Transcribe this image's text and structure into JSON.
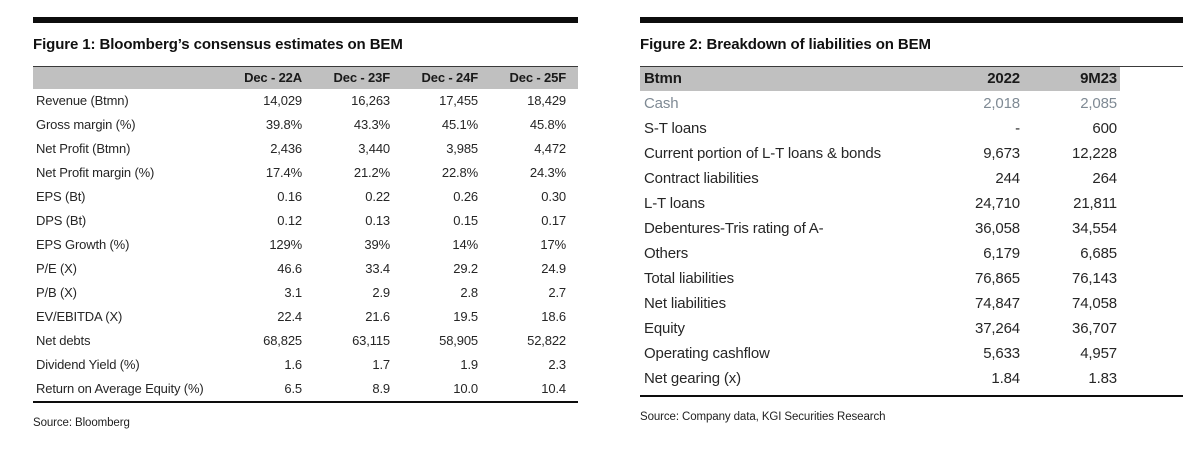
{
  "colors": {
    "header_bg": "#c0c0c0",
    "bar_color": "#0d0d0d",
    "muted_text": "#7f8a94"
  },
  "figure1": {
    "title": "Figure 1: Bloomberg’s consensus estimates on BEM",
    "source": "Source: Bloomberg",
    "columns": [
      "",
      "Dec - 22A",
      "Dec - 23F",
      "Dec - 24F",
      "Dec - 25F"
    ],
    "rows": [
      {
        "label": "Revenue (Btmn)",
        "values": [
          "14,029",
          "16,263",
          "17,455",
          "18,429"
        ]
      },
      {
        "label": "Gross margin (%)",
        "values": [
          "39.8%",
          "43.3%",
          "45.1%",
          "45.8%"
        ]
      },
      {
        "label": "Net Profit (Btmn)",
        "values": [
          "2,436",
          "3,440",
          "3,985",
          "4,472"
        ]
      },
      {
        "label": "Net Profit margin (%)",
        "values": [
          "17.4%",
          "21.2%",
          "22.8%",
          "24.3%"
        ]
      },
      {
        "label": "EPS (Bt)",
        "values": [
          "0.16",
          "0.22",
          "0.26",
          "0.30"
        ]
      },
      {
        "label": "DPS (Bt)",
        "values": [
          "0.12",
          "0.13",
          "0.15",
          "0.17"
        ]
      },
      {
        "label": "EPS Growth (%)",
        "values": [
          "129%",
          "39%",
          "14%",
          "17%"
        ]
      },
      {
        "label": "P/E (X)",
        "values": [
          "46.6",
          "33.4",
          "29.2",
          "24.9"
        ]
      },
      {
        "label": "P/B (X)",
        "values": [
          "3.1",
          "2.9",
          "2.8",
          "2.7"
        ]
      },
      {
        "label": "EV/EBITDA (X)",
        "values": [
          "22.4",
          "21.6",
          "19.5",
          "18.6"
        ]
      },
      {
        "label": "Net debts",
        "values": [
          "68,825",
          "63,115",
          "58,905",
          "52,822"
        ]
      },
      {
        "label": "Dividend Yield (%)",
        "values": [
          "1.6",
          "1.7",
          "1.9",
          "2.3"
        ]
      },
      {
        "label": "Return on Average Equity (%)",
        "values": [
          "6.5",
          "8.9",
          "10.0",
          "10.4"
        ]
      }
    ]
  },
  "figure2": {
    "title": "Figure 2: Breakdown of liabilities on BEM",
    "source": "Source: Company data, KGI Securities Research",
    "columns": [
      "Btmn",
      "2022",
      "9M23"
    ],
    "rows": [
      {
        "label": "Cash",
        "values": [
          "2,018",
          "2,085"
        ],
        "muted": true
      },
      {
        "label": "S-T loans",
        "values": [
          "-",
          "600"
        ]
      },
      {
        "label": "Current portion of L-T loans & bonds",
        "values": [
          "9,673",
          "12,228"
        ]
      },
      {
        "label": "Contract liabilities",
        "values": [
          "244",
          "264"
        ]
      },
      {
        "label": "L-T loans",
        "values": [
          "24,710",
          "21,811"
        ]
      },
      {
        "label": "Debentures-Tris rating of A-",
        "values": [
          "36,058",
          "34,554"
        ]
      },
      {
        "label": "Others",
        "values": [
          "6,179",
          "6,685"
        ]
      },
      {
        "label": "Total liabilities",
        "values": [
          "76,865",
          "76,143"
        ]
      },
      {
        "label": "Net liabilities",
        "values": [
          "74,847",
          "74,058"
        ]
      },
      {
        "label": "Equity",
        "values": [
          "37,264",
          "36,707"
        ]
      },
      {
        "label": "Operating cashflow",
        "values": [
          "5,633",
          "4,957"
        ]
      },
      {
        "label": "Net gearing (x)",
        "values": [
          "1.84",
          "1.83"
        ]
      }
    ]
  }
}
